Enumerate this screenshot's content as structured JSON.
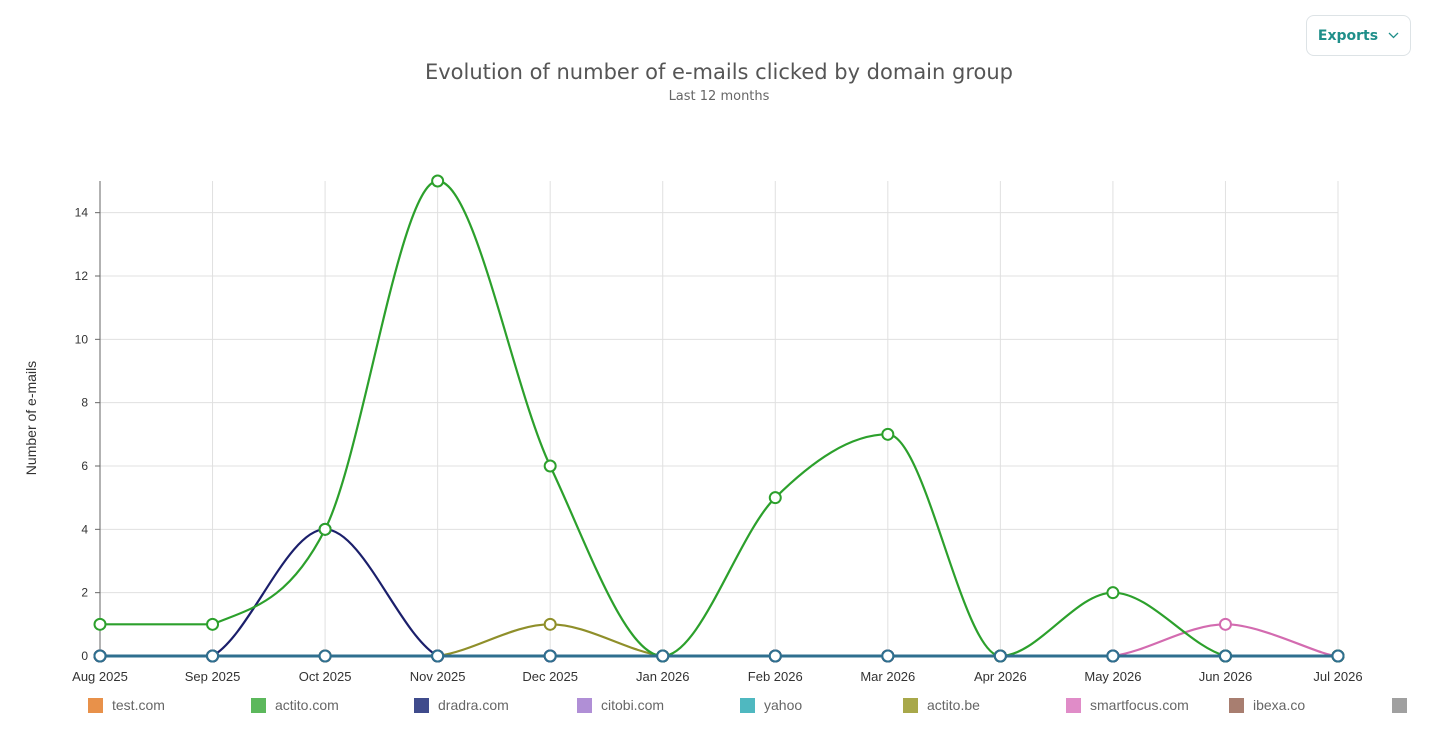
{
  "exports": {
    "label": "Exports",
    "icon": "chevron-down-icon",
    "color": "#1f8f8a"
  },
  "chart_data": {
    "type": "line",
    "title": "Evolution of number of e-mails clicked by domain group",
    "subtitle": "Last 12 months",
    "xlabel": "",
    "ylabel": "Number of e-mails",
    "categories": [
      "Aug 2025",
      "Sep 2025",
      "Oct 2025",
      "Nov 2025",
      "Dec 2025",
      "Jan 2026",
      "Feb 2026",
      "Mar 2026",
      "Apr 2026",
      "May 2026",
      "Jun 2026",
      "Jul 2026"
    ],
    "ylim": [
      0,
      15
    ],
    "yticks": [
      0,
      2,
      4,
      6,
      8,
      10,
      12,
      14
    ],
    "grid": true,
    "legend_position": "bottom",
    "series": [
      {
        "name": "test.com",
        "color": "#e8914a",
        "line_color": "#e8914a",
        "values": [
          0,
          0,
          0,
          0,
          0,
          0,
          0,
          0,
          0,
          0,
          0,
          0
        ]
      },
      {
        "name": "actito.com",
        "color": "#5cb85c",
        "line_color": "#2ca02c",
        "values": [
          1,
          1,
          4,
          15,
          6,
          0,
          5,
          7,
          0,
          2,
          0,
          0
        ]
      },
      {
        "name": "dradra.com",
        "color": "#3f4b8c",
        "line_color": "#1b1f6b",
        "values": [
          0,
          0,
          4,
          0,
          0,
          0,
          0,
          0,
          0,
          0,
          0,
          0
        ]
      },
      {
        "name": "citobi.com",
        "color": "#b08fd6",
        "line_color": "#9467bd",
        "values": [
          0,
          0,
          0,
          0,
          0,
          0,
          0,
          0,
          0,
          0,
          0,
          0
        ]
      },
      {
        "name": "yahoo",
        "color": "#4fb8c0",
        "line_color": "#3aa8b5",
        "values": [
          0,
          0,
          0,
          0,
          0,
          0,
          0,
          0,
          0,
          0,
          0,
          0
        ]
      },
      {
        "name": "actito.be",
        "color": "#a8a84a",
        "line_color": "#8f8f2a",
        "values": [
          0,
          0,
          0,
          0,
          1,
          0,
          0,
          0,
          0,
          0,
          0,
          0
        ]
      },
      {
        "name": "smartfocus.com",
        "color": "#e08cc8",
        "line_color": "#d36bb0",
        "values": [
          0,
          0,
          0,
          0,
          0,
          0,
          0,
          0,
          0,
          0,
          1,
          0
        ]
      },
      {
        "name": "ibexa.co",
        "color": "#a87e70",
        "line_color": "#8c564b",
        "values": [
          0,
          0,
          0,
          0,
          0,
          0,
          0,
          0,
          0,
          0,
          0,
          0
        ]
      },
      {
        "name": "",
        "color": "#a0a0a0",
        "line_color": "#2f6f8f",
        "values": [
          0,
          0,
          0,
          0,
          0,
          0,
          0,
          0,
          0,
          0,
          0,
          0
        ]
      }
    ]
  }
}
